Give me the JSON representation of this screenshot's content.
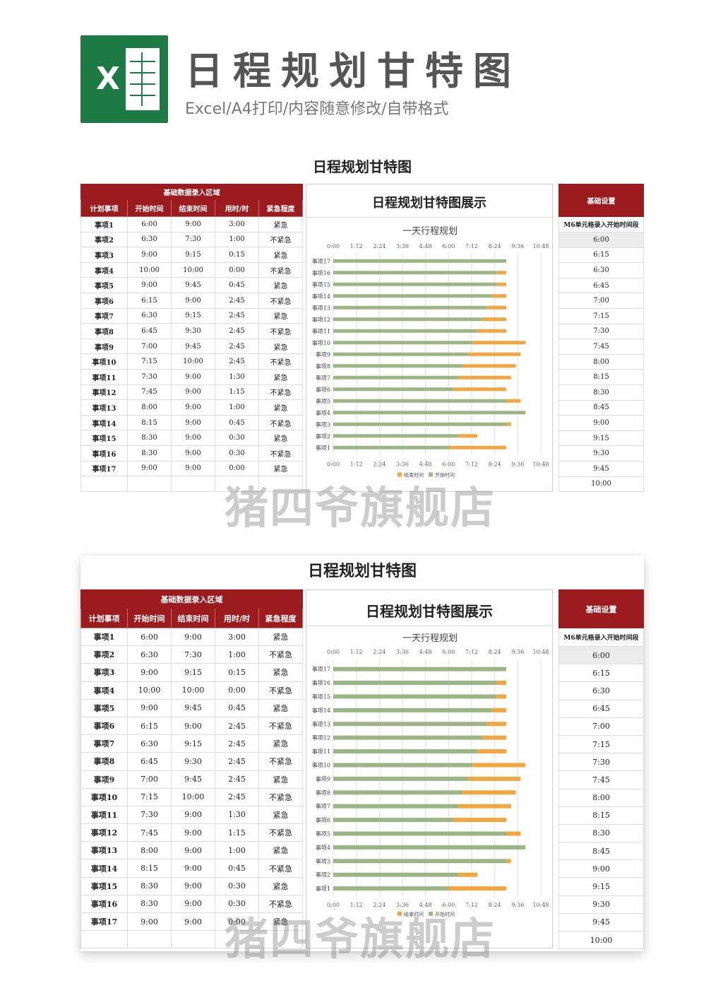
{
  "header": {
    "title": "日程规划甘特图",
    "subtitle": "Excel/A4打印/内容随意修改/自带格式",
    "logo_letter": "X"
  },
  "sheet": {
    "title": "日程规划甘特图",
    "input_region_label": "基础数据录入区域",
    "columns": [
      "计划事项",
      "开始时间",
      "结束时间",
      "用时/时",
      "紧急程度"
    ],
    "rows": [
      [
        "事项1",
        "6:00",
        "9:00",
        "3:00",
        "紧急"
      ],
      [
        "事项2",
        "6:30",
        "7:30",
        "1:00",
        "不紧急"
      ],
      [
        "事项3",
        "9:00",
        "9:15",
        "0:15",
        "紧急"
      ],
      [
        "事项4",
        "10:00",
        "10:00",
        "0:00",
        "不紧急"
      ],
      [
        "事项5",
        "9:00",
        "9:45",
        "0:45",
        "紧急"
      ],
      [
        "事项6",
        "6:15",
        "9:00",
        "2:45",
        "不紧急"
      ],
      [
        "事项7",
        "6:30",
        "9:15",
        "2:45",
        "紧急"
      ],
      [
        "事项8",
        "6:45",
        "9:30",
        "2:45",
        "不紧急"
      ],
      [
        "事项9",
        "7:00",
        "9:45",
        "2:45",
        "紧急"
      ],
      [
        "事项10",
        "7:15",
        "10:00",
        "2:45",
        "不紧急"
      ],
      [
        "事项11",
        "7:30",
        "9:00",
        "1:30",
        "紧急"
      ],
      [
        "事项12",
        "7:45",
        "9:00",
        "1:15",
        "不紧急"
      ],
      [
        "事项13",
        "8:00",
        "9:00",
        "1:00",
        "紧急"
      ],
      [
        "事项14",
        "8:15",
        "9:00",
        "0:45",
        "不紧急"
      ],
      [
        "事项15",
        "8:30",
        "9:00",
        "0:30",
        "紧急"
      ],
      [
        "事项16",
        "8:30",
        "9:00",
        "0:30",
        "不紧急"
      ],
      [
        "事项17",
        "9:00",
        "9:00",
        "0:00",
        "紧急"
      ]
    ],
    "chart_panel_title": "日程规划甘特图展示",
    "settings_title": "基础设置",
    "settings_desc": "M6单元格录入开始时间段",
    "settings_values": [
      "6:00",
      "6:15",
      "6:30",
      "6:45",
      "7:00",
      "7:15",
      "7:30",
      "7:45",
      "8:00",
      "8:15",
      "8:30",
      "8:45",
      "9:00",
      "9:15",
      "9:30",
      "9:45",
      "10:00"
    ]
  },
  "watermark": "猪四爷旗舰店",
  "colors": {
    "brand_red": "#9b1b1f",
    "excel_green": "#1e7a45",
    "bar_green": "#9bb585",
    "bar_orange": "#f2a640"
  },
  "chart_data": {
    "type": "bar",
    "orientation": "horizontal",
    "stacked": true,
    "title": "一天行程规划",
    "x_unit": "hours",
    "x_ticks": [
      "0:00",
      "1:12",
      "2:24",
      "3:36",
      "4:48",
      "6:00",
      "7:12",
      "8:24",
      "9:36",
      "10:48"
    ],
    "xlim": [
      0,
      10.8
    ],
    "categories": [
      "事项17",
      "事项16",
      "事项15",
      "事项14",
      "事项13",
      "事项12",
      "事项11",
      "事项10",
      "事项9",
      "事项8",
      "事项7",
      "事项6",
      "事项5",
      "事项4",
      "事项3",
      "事项2",
      "事项1"
    ],
    "series": [
      {
        "name": "开始时间",
        "color": "#9bb585",
        "values": [
          9.0,
          8.5,
          8.5,
          8.25,
          8.0,
          7.75,
          7.5,
          7.25,
          7.0,
          6.75,
          6.5,
          6.25,
          9.0,
          10.0,
          9.0,
          6.5,
          6.0
        ]
      },
      {
        "name": "结束时间",
        "color": "#f2a640",
        "values": [
          0.0,
          0.5,
          0.5,
          0.75,
          1.0,
          1.25,
          1.5,
          2.75,
          2.75,
          2.75,
          2.75,
          2.75,
          0.75,
          0.0,
          0.25,
          1.0,
          3.0
        ]
      }
    ],
    "legend": [
      "结束时间",
      "开始时间"
    ],
    "legend_position": "bottom",
    "grid": true
  }
}
